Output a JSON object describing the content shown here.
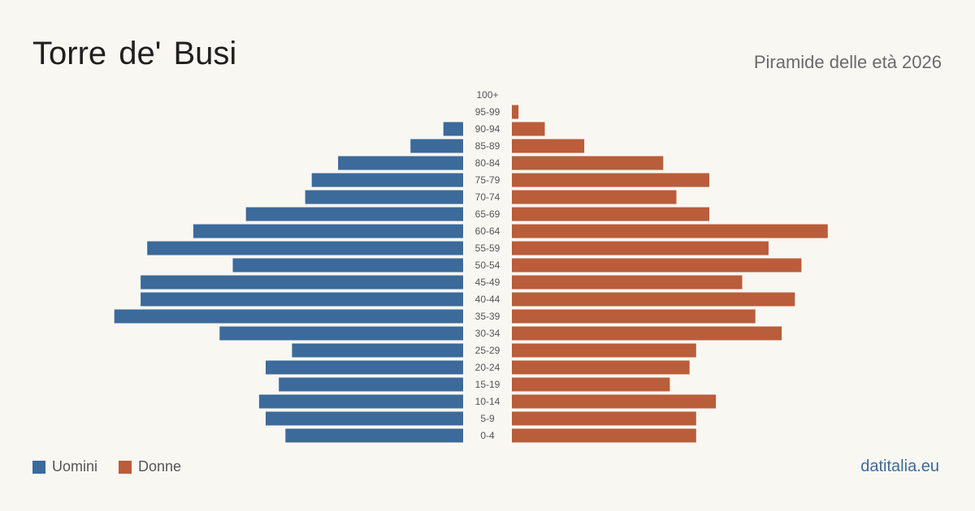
{
  "header": {
    "title": "Torre de' Busi",
    "subtitle": "Piramide delle età 2026"
  },
  "footer": {
    "source": "datitalia.eu"
  },
  "colors": {
    "male": "#3b6a9b",
    "female": "#b95d3b",
    "background": "#f9f7f2"
  },
  "legend": [
    {
      "label": "Uomini",
      "color": "#3b6a9b"
    },
    {
      "label": "Donne",
      "color": "#b95d3b"
    }
  ],
  "chart_data": {
    "type": "bar",
    "orientation": "horizontal-population-pyramid",
    "categories": [
      "0-4",
      "5-9",
      "10-14",
      "15-19",
      "20-24",
      "25-29",
      "30-34",
      "35-39",
      "40-44",
      "45-49",
      "50-54",
      "55-59",
      "60-64",
      "65-69",
      "70-74",
      "75-79",
      "80-84",
      "85-89",
      "90-94",
      "95-99",
      "100+"
    ],
    "series": [
      {
        "name": "Uomini",
        "values": [
          27,
          30,
          31,
          28,
          30,
          26,
          37,
          53,
          49,
          49,
          35,
          48,
          41,
          33,
          24,
          23,
          19,
          8,
          3,
          0,
          0
        ]
      },
      {
        "name": "Donne",
        "values": [
          28,
          28,
          31,
          24,
          27,
          28,
          41,
          37,
          43,
          35,
          44,
          39,
          48,
          30,
          25,
          30,
          23,
          11,
          5,
          1,
          0
        ]
      }
    ]
  }
}
